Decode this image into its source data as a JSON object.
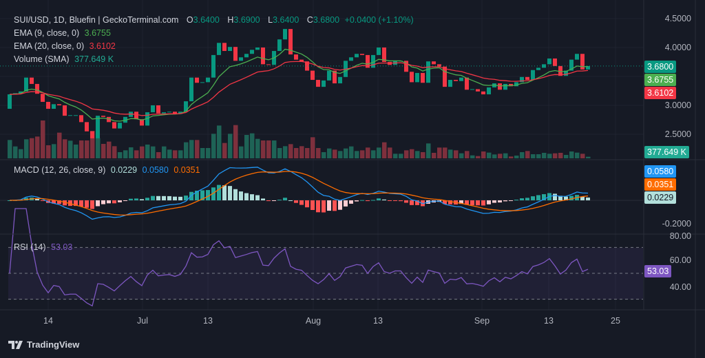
{
  "header": {
    "symbol": "SUI/USD, 1D, Bluefin | GeckoTerminal.com",
    "o_label": "O",
    "o": "3.6400",
    "h_label": "H",
    "h": "3.6900",
    "l_label": "L",
    "l": "3.6400",
    "c_label": "C",
    "c": "3.6800",
    "change": "+0.0400 (+1.10%)"
  },
  "indicators": {
    "ema9": {
      "label": "EMA (9, close, 0)",
      "value": "3.6755",
      "color": "#4caf50"
    },
    "ema20": {
      "label": "EMA (20, close, 0)",
      "value": "3.6102",
      "color": "#f23645"
    },
    "volume": {
      "label": "Volume (SMA)",
      "value": "377.649 K",
      "color": "#22ab94"
    },
    "macd": {
      "label": "MACD (12, 26, close, 9)",
      "hist": "0.0229",
      "macd": "0.0580",
      "signal": "0.0351",
      "macd_color": "#2196f3",
      "signal_color": "#ff6d00"
    },
    "rsi": {
      "label": "RSI (14)",
      "value": "53.03",
      "color": "#7e57c2"
    }
  },
  "price_axis": {
    "ticks": [
      "4.5000",
      "4.0000",
      "3.0000",
      "2.5000"
    ],
    "tick_values": [
      4.5,
      4.0,
      3.0,
      2.5
    ]
  },
  "macd_axis": {
    "ticks": [
      "-0.2000"
    ]
  },
  "rsi_axis": {
    "ticks": [
      "80.00",
      "60.00",
      "40.00"
    ],
    "bands": [
      70,
      50,
      30
    ]
  },
  "price_tags": {
    "last": "3.6800",
    "ema9": "3.6755",
    "ema20": "3.6102",
    "volume": "377.649 K",
    "macd": "0.0580",
    "signal": "0.0351",
    "hist": "0.0229",
    "rsi": "53.03"
  },
  "time_axis": [
    "14",
    "Jul",
    "13",
    "Aug",
    "13",
    "Sep",
    "13",
    "25"
  ],
  "colors": {
    "up": "#089981",
    "down": "#f23645",
    "background": "#161a25"
  },
  "footer": {
    "brand": "TradingView"
  },
  "chart_data": {
    "type": "candlestick",
    "first_open": 2.94,
    "close": [
      3.19,
      3.21,
      3.24,
      3.48,
      3.37,
      3.2,
      3.06,
      2.94,
      3.02,
      3.0,
      2.82,
      2.83,
      2.83,
      2.71,
      2.55,
      2.43,
      2.82,
      2.8,
      2.71,
      2.6,
      2.7,
      2.8,
      2.89,
      2.76,
      2.65,
      2.88,
      3.0,
      2.86,
      2.88,
      2.89,
      2.85,
      2.89,
      3.07,
      3.48,
      3.39,
      3.4,
      3.48,
      3.87,
      4.08,
      3.94,
      4.01,
      3.77,
      3.83,
      3.89,
      3.96,
      4.0,
      3.71,
      3.7,
      3.94,
      4.14,
      4.32,
      3.88,
      3.79,
      3.76,
      3.6,
      3.44,
      3.32,
      3.43,
      3.6,
      3.38,
      3.49,
      3.77,
      3.83,
      3.89,
      3.87,
      3.65,
      3.87,
      4.0,
      3.75,
      3.7,
      3.77,
      3.77,
      3.58,
      3.4,
      3.56,
      3.39,
      3.76,
      3.71,
      3.67,
      3.32,
      3.44,
      3.42,
      3.48,
      3.27,
      3.28,
      3.24,
      3.19,
      3.31,
      3.38,
      3.27,
      3.37,
      3.33,
      3.4,
      3.49,
      3.44,
      3.61,
      3.65,
      3.71,
      3.81,
      3.68,
      3.51,
      3.6,
      3.79,
      3.89,
      3.62,
      3.68
    ],
    "volume_relative": [
      80,
      52,
      40,
      83,
      88,
      95,
      165,
      57,
      62,
      112,
      83,
      77,
      60,
      78,
      78,
      120,
      88,
      63,
      73,
      53,
      27,
      35,
      48,
      35,
      52,
      60,
      52,
      27,
      52,
      38,
      35,
      35,
      70,
      80,
      80,
      45,
      45,
      107,
      143,
      67,
      107,
      145,
      52,
      102,
      109,
      85,
      78,
      78,
      78,
      45,
      53,
      62,
      45,
      53,
      45,
      92,
      45,
      27,
      43,
      38,
      32,
      43,
      52,
      32,
      35,
      47,
      35,
      47,
      70,
      47,
      20,
      20,
      35,
      40,
      32,
      27,
      65,
      24,
      47,
      47,
      38,
      35,
      22,
      32,
      13,
      10,
      30,
      25,
      17,
      20,
      22,
      8,
      12,
      27,
      32,
      18,
      18,
      24,
      20,
      22,
      24,
      15,
      30,
      25,
      20,
      7
    ],
    "ylim": [
      2.3,
      4.55
    ]
  }
}
